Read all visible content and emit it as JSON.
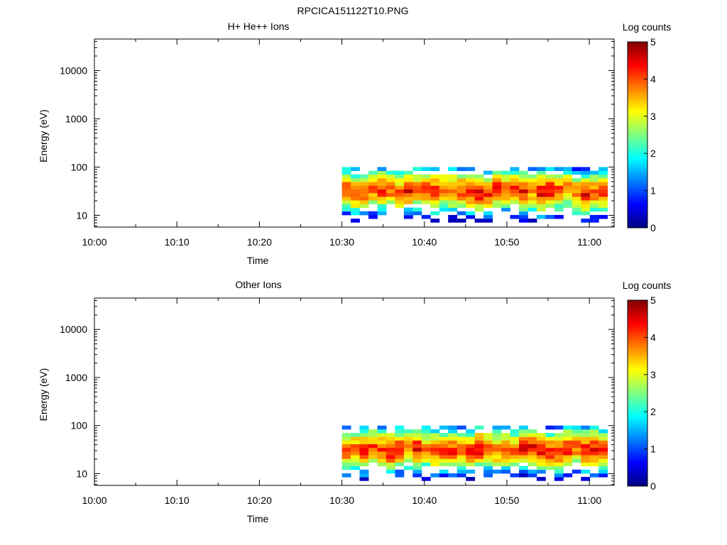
{
  "page": {
    "title": "RPCICA151122T10.PNG"
  },
  "chart_data": [
    {
      "type": "heatmap",
      "title": "H+ He++ Ions",
      "xlabel": "Time",
      "ylabel": "Energy (eV)",
      "x_ticks": [
        "10:00",
        "10:10",
        "10:20",
        "10:30",
        "10:40",
        "10:50",
        "11:00"
      ],
      "xlim": [
        "10:00",
        "11:03"
      ],
      "y_scale": "log",
      "y_ticks": [
        "10",
        "100",
        "1000",
        "10000"
      ],
      "ylim": [
        5.7,
        45000
      ],
      "data_time_range": [
        "10:30",
        "11:02"
      ],
      "energy_band_peak_ev": [
        20,
        50
      ],
      "energy_band_extent_ev": [
        6,
        100
      ],
      "colorbar": {
        "label": "Log counts",
        "range": [
          0,
          5
        ],
        "ticks": [
          "0",
          "1",
          "2",
          "3",
          "4",
          "5"
        ],
        "colormap": "jet"
      },
      "seed": 7
    },
    {
      "type": "heatmap",
      "title": "Other Ions",
      "xlabel": "Time",
      "ylabel": "Energy (eV)",
      "x_ticks": [
        "10:00",
        "10:10",
        "10:20",
        "10:30",
        "10:40",
        "10:50",
        "11:00"
      ],
      "xlim": [
        "10:00",
        "11:03"
      ],
      "y_scale": "log",
      "y_ticks": [
        "10",
        "100",
        "1000",
        "10000"
      ],
      "ylim": [
        5.7,
        45000
      ],
      "data_time_range": [
        "10:30",
        "11:02"
      ],
      "energy_band_peak_ev": [
        20,
        50
      ],
      "energy_band_extent_ev": [
        6,
        100
      ],
      "colorbar": {
        "label": "Log counts",
        "range": [
          0,
          5
        ],
        "ticks": [
          "0",
          "1",
          "2",
          "3",
          "4",
          "5"
        ],
        "colormap": "jet"
      },
      "seed": 13
    }
  ]
}
